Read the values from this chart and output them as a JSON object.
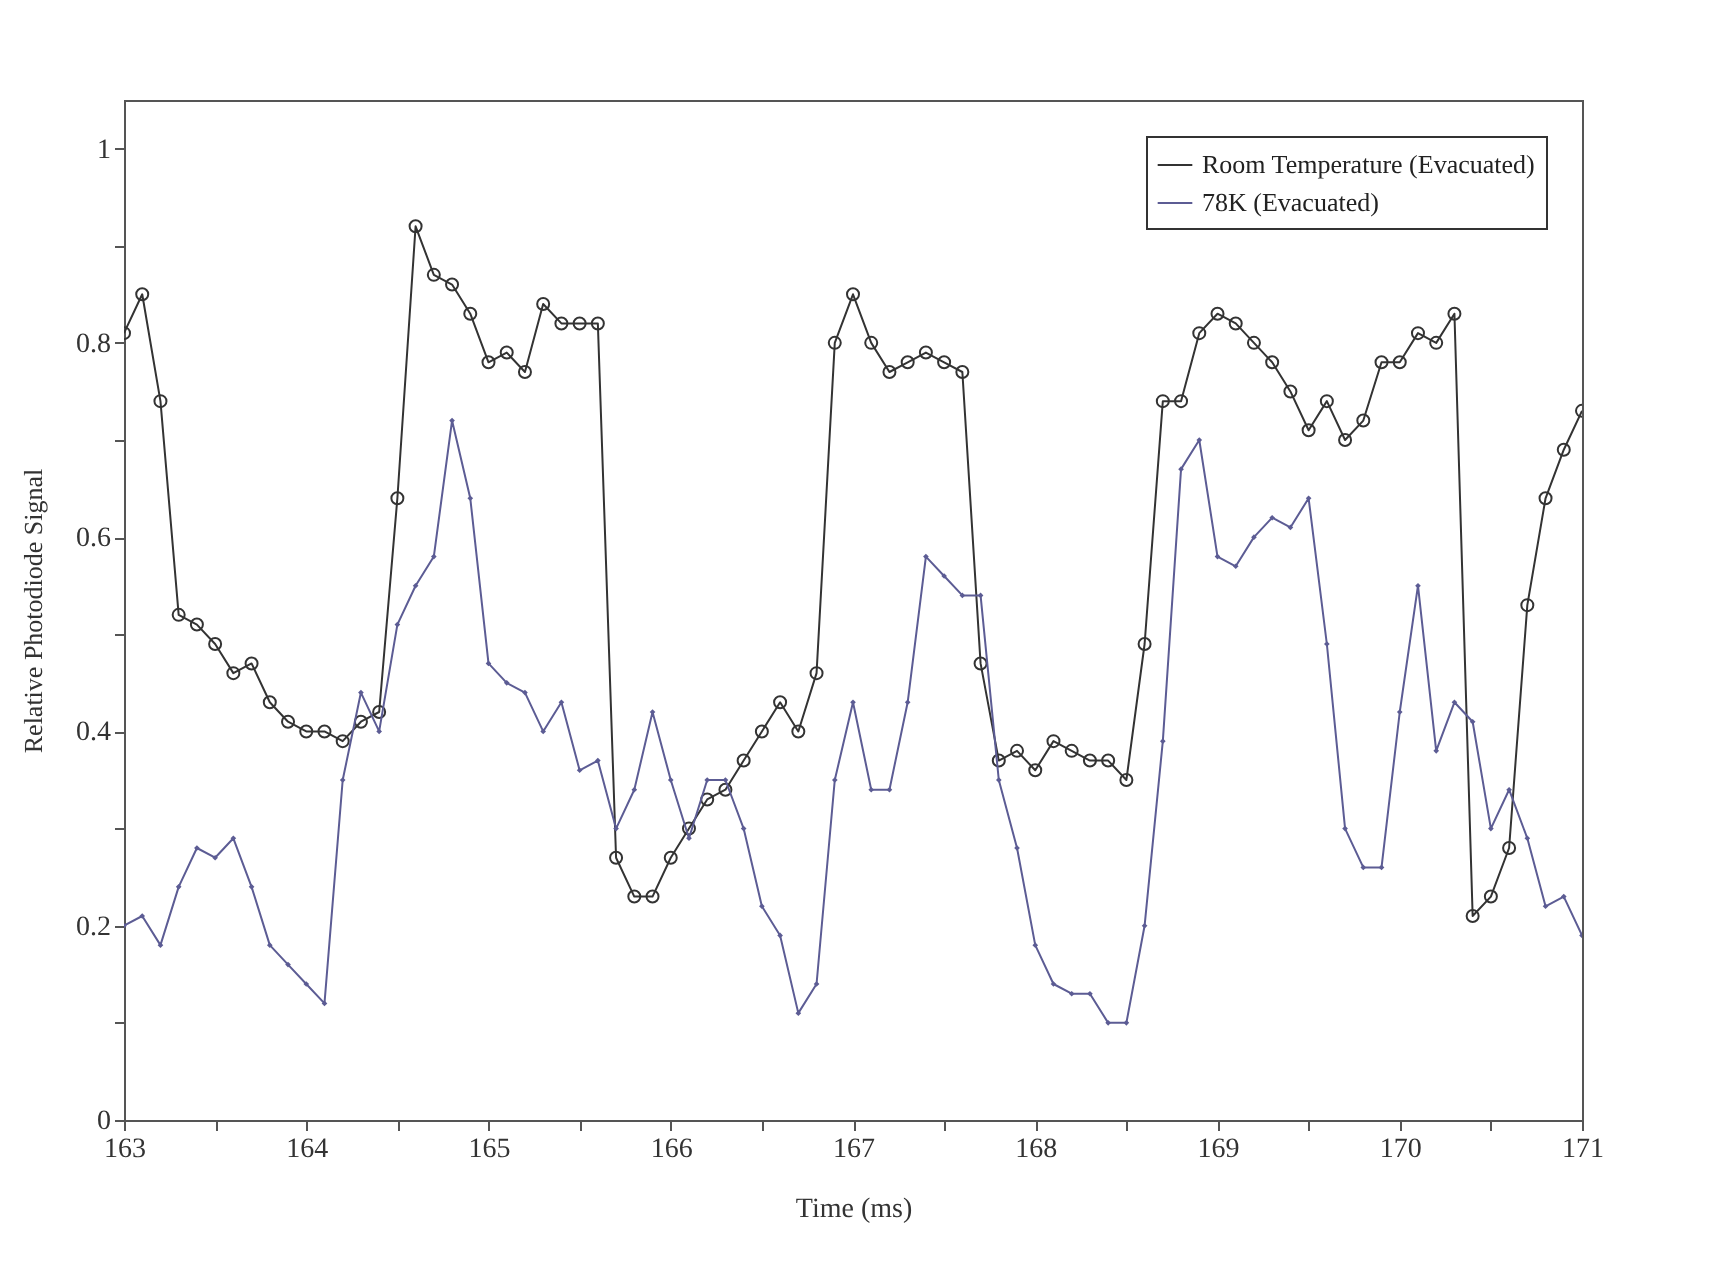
{
  "chart_data": {
    "type": "line",
    "xlabel": "Time (ms)",
    "ylabel": "Relative Photodiode Signal",
    "x": [
      163.0,
      163.1,
      163.2,
      163.3,
      163.4,
      163.5,
      163.6,
      163.7,
      163.8,
      163.9,
      164.0,
      164.1,
      164.2,
      164.3,
      164.4,
      164.5,
      164.6,
      164.7,
      164.8,
      164.9,
      165.0,
      165.1,
      165.2,
      165.3,
      165.4,
      165.5,
      165.6,
      165.7,
      165.8,
      165.9,
      166.0,
      166.1,
      166.2,
      166.3,
      166.4,
      166.5,
      166.6,
      166.7,
      166.8,
      166.9,
      167.0,
      167.1,
      167.2,
      167.3,
      167.4,
      167.5,
      167.6,
      167.7,
      167.8,
      167.9,
      168.0,
      168.1,
      168.2,
      168.3,
      168.4,
      168.5,
      168.6,
      168.7,
      168.8,
      168.9,
      169.0,
      169.1,
      169.2,
      169.3,
      169.4,
      169.5,
      169.6,
      169.7,
      169.8,
      169.9,
      170.0,
      170.1,
      170.2,
      170.3,
      170.4,
      170.5,
      170.6,
      170.7,
      170.8,
      170.9,
      171.0
    ],
    "series": [
      {
        "name": "Room Temperature (Evacuated)",
        "color": "#333333",
        "marker": "circle",
        "values": [
          0.81,
          0.85,
          0.74,
          0.52,
          0.51,
          0.49,
          0.46,
          0.47,
          0.43,
          0.41,
          0.4,
          0.4,
          0.39,
          0.41,
          0.42,
          0.64,
          0.92,
          0.87,
          0.86,
          0.83,
          0.78,
          0.79,
          0.77,
          0.84,
          0.82,
          0.82,
          0.82,
          0.27,
          0.23,
          0.23,
          0.27,
          0.3,
          0.33,
          0.34,
          0.37,
          0.4,
          0.43,
          0.4,
          0.46,
          0.8,
          0.85,
          0.8,
          0.77,
          0.78,
          0.79,
          0.78,
          0.77,
          0.47,
          0.37,
          0.38,
          0.36,
          0.39,
          0.38,
          0.37,
          0.37,
          0.35,
          0.49,
          0.74,
          0.74,
          0.81,
          0.83,
          0.82,
          0.8,
          0.78,
          0.75,
          0.71,
          0.74,
          0.7,
          0.72,
          0.78,
          0.78,
          0.81,
          0.8,
          0.83,
          0.21,
          0.23,
          0.28,
          0.53,
          0.64,
          0.69,
          0.73
        ]
      },
      {
        "name": "78K (Evacuated)",
        "color": "#5c5c94",
        "marker": "diamond",
        "values": [
          0.2,
          0.21,
          0.18,
          0.24,
          0.28,
          0.27,
          0.29,
          0.24,
          0.18,
          0.16,
          0.14,
          0.12,
          0.35,
          0.44,
          0.4,
          0.51,
          0.55,
          0.58,
          0.72,
          0.64,
          0.47,
          0.45,
          0.44,
          0.4,
          0.43,
          0.36,
          0.37,
          0.3,
          0.34,
          0.42,
          0.35,
          0.29,
          0.35,
          0.35,
          0.3,
          0.22,
          0.19,
          0.11,
          0.14,
          0.35,
          0.43,
          0.34,
          0.34,
          0.43,
          0.58,
          0.56,
          0.54,
          0.54,
          0.35,
          0.28,
          0.18,
          0.14,
          0.13,
          0.13,
          0.1,
          0.1,
          0.2,
          0.39,
          0.67,
          0.7,
          0.58,
          0.57,
          0.6,
          0.62,
          0.61,
          0.64,
          0.49,
          0.3,
          0.26,
          0.26,
          0.42,
          0.55,
          0.38,
          0.43,
          0.41,
          0.3,
          0.34,
          0.29,
          0.22,
          0.23,
          0.19
        ]
      }
    ],
    "xlim": [
      163,
      171
    ],
    "xticks": [
      163,
      {
        "value": 163.5,
        "label": null
      },
      164,
      {
        "value": 164.5,
        "label": null
      },
      165,
      {
        "value": 165.5,
        "label": null
      },
      166,
      {
        "value": 166.5,
        "label": null
      },
      167,
      {
        "value": 167.5,
        "label": null
      },
      168,
      {
        "value": 168.5,
        "label": null
      },
      169,
      {
        "value": 169.5,
        "label": null
      },
      170,
      {
        "value": 170.5,
        "label": null
      },
      171
    ],
    "ylim": [
      0,
      1.05
    ],
    "yticks": [
      0,
      {
        "value": 0.1,
        "label": null
      },
      0.2,
      {
        "value": 0.3,
        "label": null
      },
      0.4,
      {
        "value": 0.5,
        "label": null
      },
      0.6,
      {
        "value": 0.7,
        "label": null
      },
      0.8,
      {
        "value": 0.9,
        "label": null
      },
      1
    ],
    "legend": "top right",
    "grid": false,
    "line_style": "solid"
  }
}
